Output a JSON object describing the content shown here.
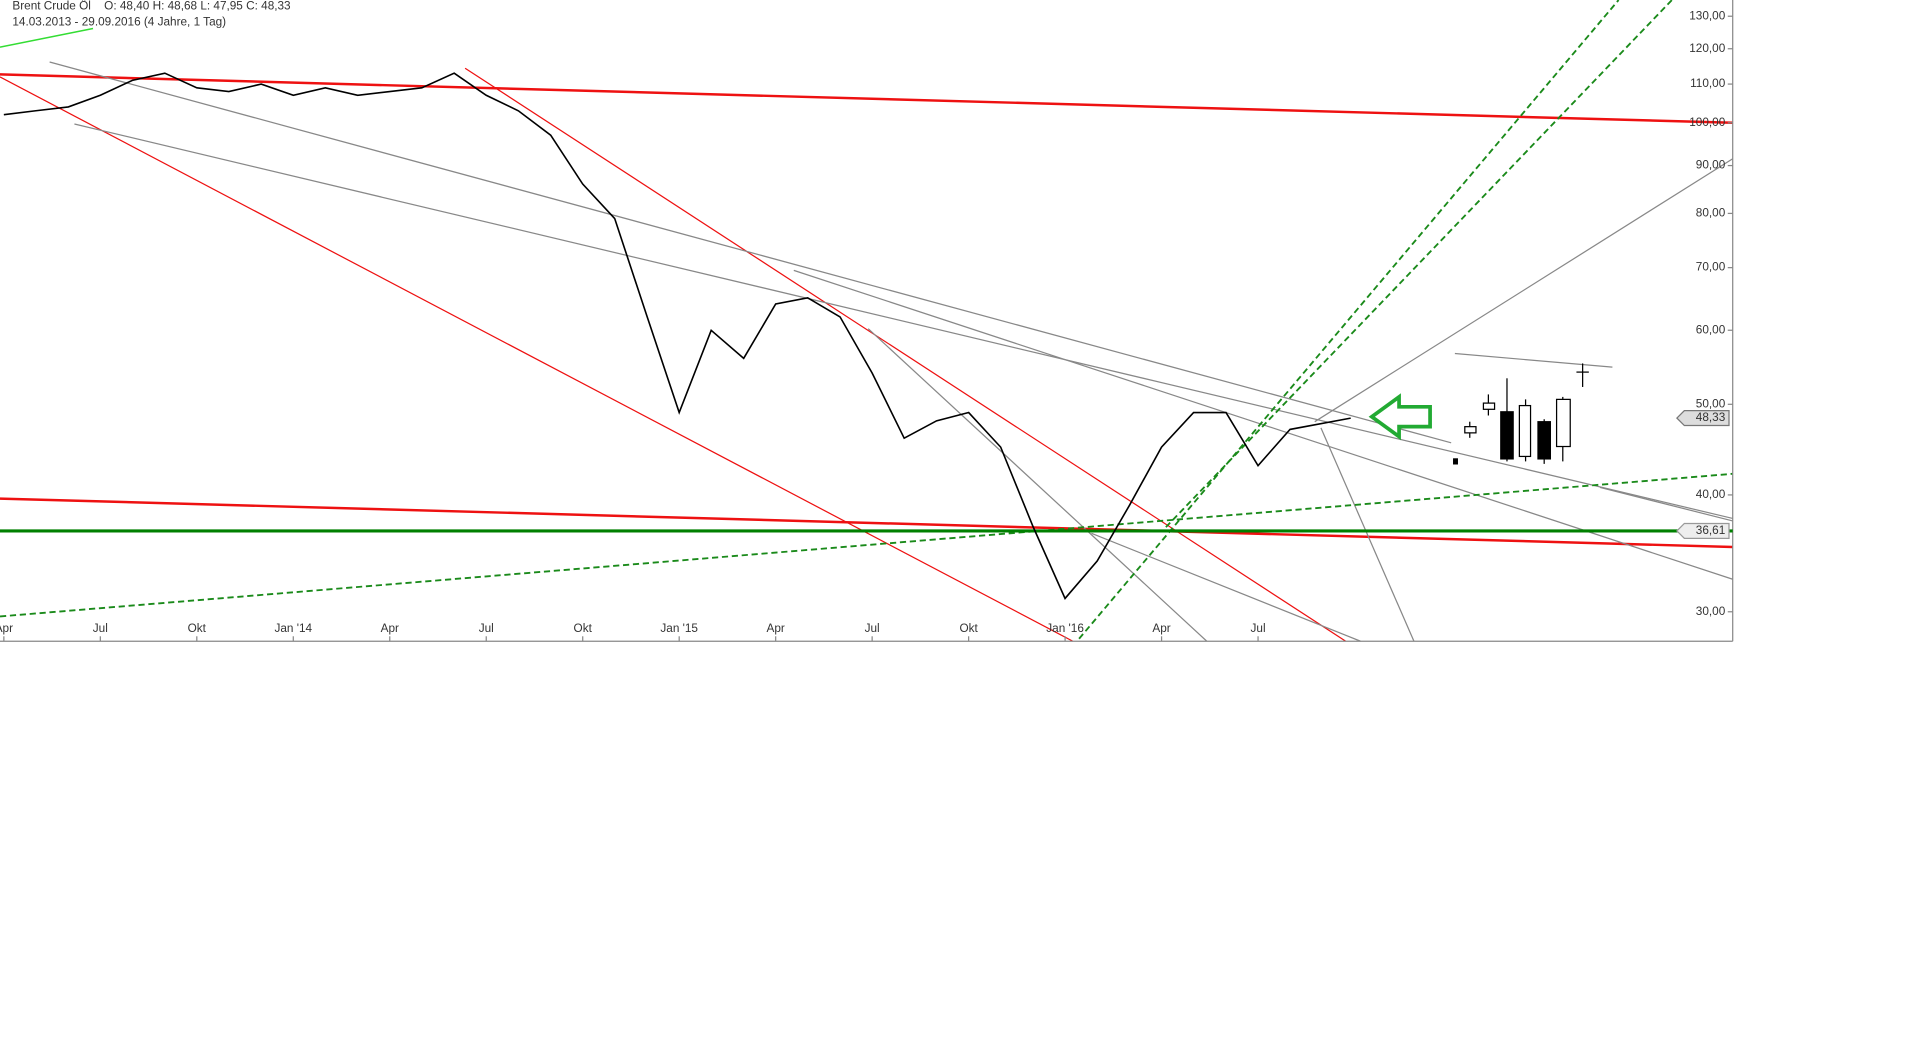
{
  "chart_data": {
    "type": "line",
    "title": "Brent Crude Öl",
    "quote": "O: 48,40   H: 48,68   L: 47,95   C: 48,33",
    "period": "14.03.2013 - 29.09.2016 (4 Jahre, 1 Tag)",
    "x": [
      2013.25,
      2013.333,
      2013.417,
      2013.5,
      2013.583,
      2013.667,
      2013.75,
      2013.833,
      2013.917,
      2014.0,
      2014.083,
      2014.167,
      2014.25,
      2014.333,
      2014.417,
      2014.5,
      2014.583,
      2014.667,
      2014.75,
      2014.833,
      2014.917,
      2015.0,
      2015.083,
      2015.167,
      2015.25,
      2015.333,
      2015.417,
      2015.5,
      2015.583,
      2015.667,
      2015.75,
      2015.833,
      2015.917,
      2016.0,
      2016.083,
      2016.167,
      2016.25,
      2016.333,
      2016.417,
      2016.5,
      2016.583,
      2016.74
    ],
    "series": [
      {
        "color": "#000000",
        "values": [
          102,
          103,
          104,
          107,
          111,
          113,
          109,
          108,
          110,
          107,
          109,
          107,
          108,
          109,
          113,
          107,
          103,
          97,
          86,
          79,
          62,
          49,
          60,
          56,
          64,
          65,
          62,
          54,
          46,
          48,
          49,
          45,
          37,
          31,
          34,
          39,
          45,
          49,
          49,
          43,
          47,
          48.33
        ]
      }
    ],
    "xlim": [
      2013.24,
      2017.73
    ],
    "xticks": [
      {
        "value": 2013.25,
        "label": "Apr"
      },
      {
        "value": 2013.5,
        "label": "Jul"
      },
      {
        "value": 2013.75,
        "label": "Okt"
      },
      {
        "value": 2014.0,
        "label": "Jan '14"
      },
      {
        "value": 2014.25,
        "label": "Apr"
      },
      {
        "value": 2014.5,
        "label": "Jul"
      },
      {
        "value": 2014.75,
        "label": "Okt"
      },
      {
        "value": 2015.0,
        "label": "Jan '15"
      },
      {
        "value": 2015.25,
        "label": "Apr"
      },
      {
        "value": 2015.5,
        "label": "Jul"
      },
      {
        "value": 2015.75,
        "label": "Okt"
      },
      {
        "value": 2016.0,
        "label": "Jan '16"
      },
      {
        "value": 2016.25,
        "label": "Apr"
      },
      {
        "value": 2016.5,
        "label": "Jul"
      }
    ],
    "ylim": [
      27.9,
      135.3
    ],
    "log_scale": true,
    "yticks": [
      {
        "value": 30,
        "label": "30,00"
      },
      {
        "value": 40,
        "label": "40,00"
      },
      {
        "value": 50,
        "label": "50,00"
      },
      {
        "value": 60,
        "label": "60,00"
      },
      {
        "value": 70,
        "label": "70,00"
      },
      {
        "value": 80,
        "label": "80,00"
      },
      {
        "value": 90,
        "label": "90,00"
      },
      {
        "value": 100,
        "label": "100,00"
      },
      {
        "value": 110,
        "label": "110,00"
      },
      {
        "value": 120,
        "label": "120,00"
      },
      {
        "value": 130,
        "label": "130,00"
      }
    ],
    "price_tag": {
      "value": 48.33,
      "label": "48,33"
    },
    "levels": [
      {
        "value": 36.61,
        "label": "36,61",
        "color": "#008000"
      }
    ]
  }
}
